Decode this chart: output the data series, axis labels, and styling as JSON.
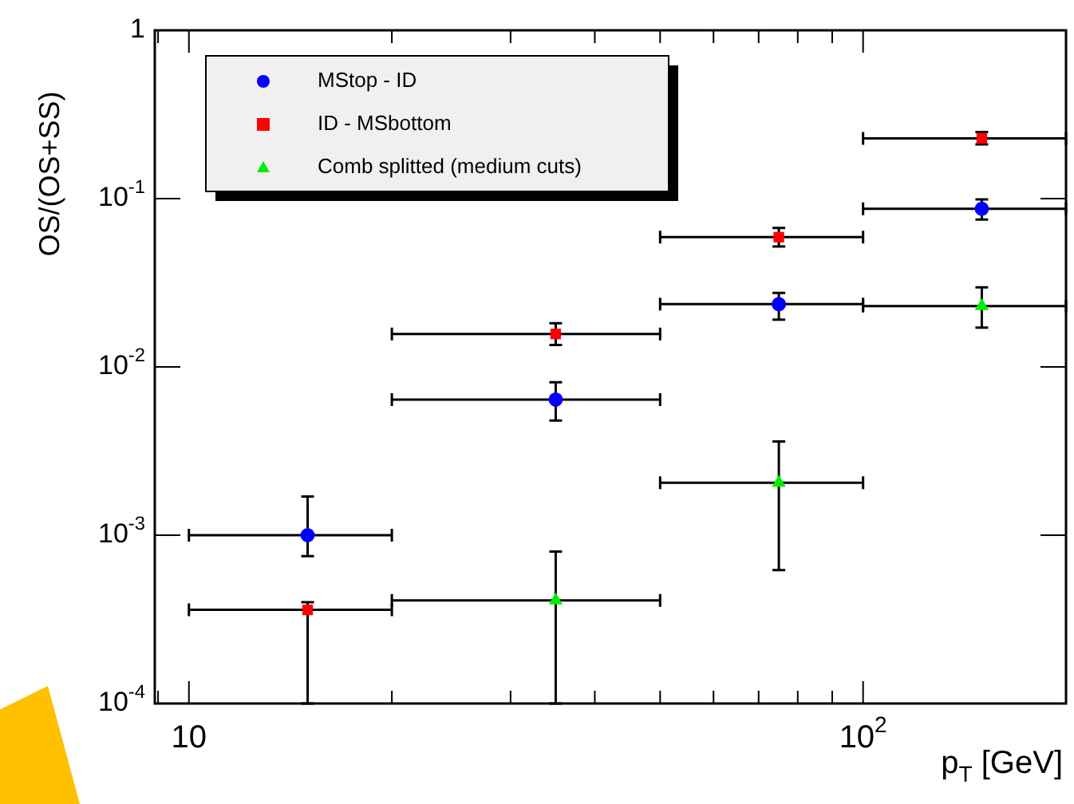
{
  "chart_data": {
    "type": "scatter",
    "xlabel": "p$_{T}$ [GeV]",
    "ylabel": "OS/(OS+SS)",
    "log": "xy",
    "grid": false,
    "legend": "top left",
    "x": [
      15,
      35,
      75,
      150
    ],
    "xlim": [
      8.9,
      200
    ],
    "xticks": [
      {
        "value": 9,
        "label": null
      },
      {
        "value": 10,
        "label": "10"
      },
      {
        "value": 20,
        "label": null
      },
      {
        "value": 30,
        "label": null
      },
      {
        "value": 40,
        "label": null
      },
      {
        "value": 50,
        "label": null
      },
      {
        "value": 60,
        "label": null
      },
      {
        "value": 70,
        "label": null
      },
      {
        "value": 80,
        "label": null
      },
      {
        "value": 90,
        "label": null
      },
      {
        "value": 100,
        "label": "10$^{2}$"
      }
    ],
    "ylim": [
      0.0001,
      1
    ],
    "yticks": [
      {
        "value": 0.0001,
        "label": "10$^{-4}$"
      },
      {
        "value": 0.001,
        "label": "10$^{-3}$"
      },
      {
        "value": 0.01,
        "label": "10$^{-2}$"
      },
      {
        "value": 0.1,
        "label": "10$^{-1}$"
      },
      1
    ],
    "series": [
      {
        "name": "MStop - ID",
        "color": "#0000ff",
        "marker": "circle",
        "values": [
          0.001,
          0.0064,
          0.0236,
          0.087
        ],
        "errors": [
          [
            0.00075,
            0.0017
          ],
          [
            0.0048,
            0.0081
          ],
          [
            0.0191,
            0.0275
          ],
          [
            0.075,
            0.099
          ]
        ],
        "xerrors": [
          5,
          15,
          25,
          50
        ]
      },
      {
        "name": "ID - MSbottom",
        "color": "#ff0000",
        "marker": "square",
        "values": [
          0.00036,
          0.0157,
          0.059,
          0.228
        ],
        "errors": [
          [
            0.0001,
            0.0004
          ],
          [
            0.0135,
            0.0182
          ],
          [
            0.052,
            0.067
          ],
          [
            0.21,
            0.249
          ]
        ],
        "xerrors": [
          5,
          15,
          25,
          50
        ]
      },
      {
        "name": "Comb splitted (medium cuts)",
        "color": "#00ee00",
        "marker": "triangle",
        "values": [
          null,
          0.00041,
          0.00205,
          0.023
        ],
        "errors": [
          null,
          [
            0.0001,
            0.0008
          ],
          [
            0.00062,
            0.0036
          ],
          [
            0.0171,
            0.0297
          ]
        ],
        "xerrors": [
          null,
          15,
          25,
          50
        ]
      }
    ]
  }
}
